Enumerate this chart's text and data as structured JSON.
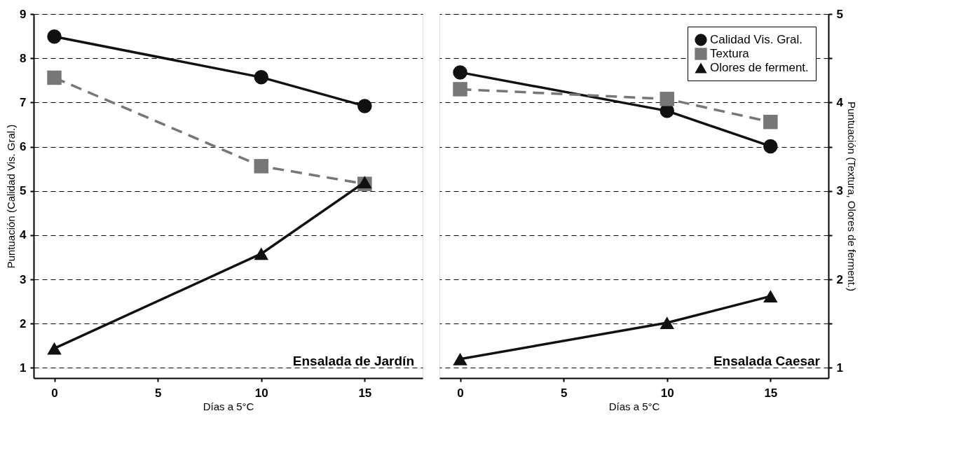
{
  "chart_data": [
    {
      "type": "line",
      "xlabel": "Días a 5°C",
      "ylabel": "Puntuación (Calidad Vis. Gral.)",
      "annotations": [
        "Ensalada de Jardín"
      ],
      "x": [
        0,
        10,
        15
      ],
      "xlim": [
        -1,
        17.8
      ],
      "xticks": [
        0,
        5,
        10,
        15
      ],
      "ylim": [
        0.77,
        9
      ],
      "yticks": [
        1,
        2,
        3,
        4,
        5,
        6,
        7,
        8,
        9
      ],
      "y2lim": [
        0.885,
        5
      ],
      "tick_labels": [
        "x",
        "y"
      ],
      "grid": "y",
      "legend": false,
      "series": [
        {
          "color": "#111111",
          "values": [
            8.49,
            7.57,
            6.92
          ],
          "marker": "circle",
          "line_style": "solid"
        },
        {
          "color": "#777777",
          "values": [
            4.28,
            3.28,
            3.08
          ],
          "marker": "square",
          "line_style": "dashed",
          "axis": "y2"
        },
        {
          "color": "#111111",
          "values": [
            1.22,
            2.29,
            3.1
          ],
          "marker": "triangle",
          "line_style": "solid",
          "axis": "y2"
        }
      ]
    },
    {
      "type": "line",
      "xlabel": "Días a 5°C",
      "y2label": "Puntuación (Textura, Olores de ferment.)",
      "annotations": [
        "Ensalada Caesar"
      ],
      "x": [
        0,
        10,
        15
      ],
      "xlim": [
        -1,
        17.8
      ],
      "xticks": [
        0,
        5,
        10,
        15
      ],
      "ylim": [
        0.77,
        9
      ],
      "y2lim": [
        0.885,
        5
      ],
      "y2ticks": [
        1,
        {
          "value": 1.5,
          "label": null
        },
        2,
        {
          "value": 2.5,
          "label": null
        },
        3,
        {
          "value": 3.5,
          "label": null
        },
        4,
        {
          "value": 4.5,
          "label": null
        },
        5
      ],
      "tick_labels": [
        "x",
        "y2"
      ],
      "grid": "y",
      "legend": "top right",
      "series": [
        {
          "name": "Calidad Vis. Gral.",
          "color": "#111111",
          "values": [
            7.68,
            6.81,
            6.01
          ],
          "marker": "circle",
          "line_style": "solid"
        },
        {
          "name": "Textura",
          "color": "#777777",
          "values": [
            4.15,
            4.04,
            3.78
          ],
          "marker": "square",
          "line_style": "dashed",
          "axis": "y2"
        },
        {
          "name": "Olores de ferment.",
          "color": "#111111",
          "values": [
            1.1,
            1.51,
            1.81
          ],
          "marker": "triangle",
          "line_style": "solid",
          "axis": "y2"
        }
      ]
    }
  ]
}
